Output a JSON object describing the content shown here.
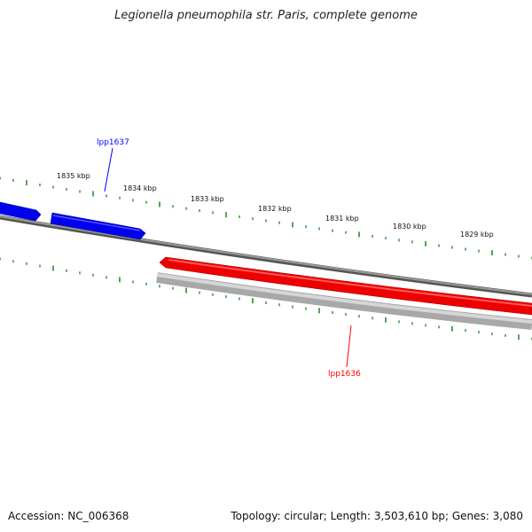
{
  "title": "Legionella pneumophila str. Paris, complete genome",
  "footer": {
    "accession": "Accession: NC_006368",
    "info": "Topology: circular; Length: 3,503,610 bp; Genes: 3,080"
  },
  "colors": {
    "forward_gene": "#0000ff",
    "reverse_gene": "#ff0000",
    "backbone": "#777777",
    "reverse_backbone": "#bbbbbb",
    "ticks": "#2a8a2a"
  },
  "scale": {
    "labels": [
      "1835 kbp",
      "1834 kbp",
      "1833 kbp",
      "1832 kbp",
      "1831 kbp",
      "1830 kbp",
      "1829 kbp"
    ]
  },
  "genes": [
    {
      "name": "lpp1637",
      "strand": "forward",
      "color": "#0000ff"
    },
    {
      "name": "lpp1636",
      "strand": "reverse",
      "color": "#ff0000"
    }
  ]
}
